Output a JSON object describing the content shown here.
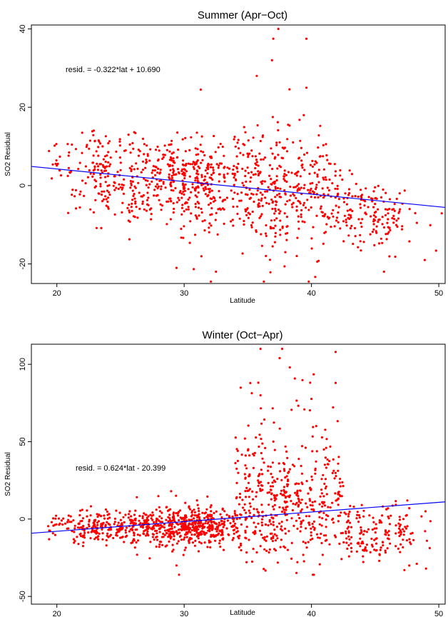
{
  "chart_data": [
    {
      "type": "scatter",
      "title": "Summer (Apr−Oct)",
      "xlabel": "Latitude",
      "ylabel": "SO2 Residual",
      "xlim": [
        18,
        50.5
      ],
      "ylim": [
        -25,
        41
      ],
      "xticks": [
        20,
        30,
        40,
        50
      ],
      "yticks": [
        -20,
        0,
        20,
        40
      ],
      "grid": false,
      "point_color": "#ff0000",
      "fit_color": "#0000ff",
      "annotation": "resid. = -0.322*lat + 10.690",
      "fit": {
        "slope": -0.322,
        "intercept": 10.69
      },
      "points_described": {
        "count_approx": 1200,
        "x_range": [
          18.2,
          50.3
        ],
        "notable_highs": [
          [
            37.4,
            40
          ],
          [
            39.6,
            37.5
          ],
          [
            37.0,
            37.5
          ],
          [
            36.9,
            32
          ],
          [
            35.7,
            28
          ],
          [
            31.3,
            24.5
          ],
          [
            39.6,
            25
          ]
        ],
        "notable_lows": [
          [
            32.1,
            -24.5
          ],
          [
            29.4,
            -21
          ],
          [
            32.5,
            -22
          ],
          [
            45.7,
            -22
          ],
          [
            48.9,
            -19
          ]
        ]
      }
    },
    {
      "type": "scatter",
      "title": "Winter (Oct−Apr)",
      "xlabel": "Latitude",
      "ylabel": "SO2 Residual",
      "xlim": [
        18,
        50.5
      ],
      "ylim": [
        -55,
        113
      ],
      "xticks": [
        20,
        30,
        40,
        50
      ],
      "yticks": [
        -50,
        0,
        50,
        100
      ],
      "grid": false,
      "point_color": "#ff0000",
      "fit_color": "#0000ff",
      "annotation": "resid. = 0.624*lat - 20.399",
      "fit": {
        "slope": 0.624,
        "intercept": -20.399
      },
      "points_described": {
        "count_approx": 1500,
        "x_range": [
          18.2,
          50.3
        ],
        "notable_highs": [
          [
            36.0,
            110
          ],
          [
            37.5,
            104
          ],
          [
            41.9,
            108
          ],
          [
            38.3,
            98
          ],
          [
            36.0,
            80
          ],
          [
            41.9,
            88
          ]
        ],
        "notable_lows": [
          [
            29.6,
            -36
          ],
          [
            29.4,
            -30
          ],
          [
            47.3,
            -33
          ],
          [
            49.0,
            -32
          ]
        ]
      }
    }
  ]
}
